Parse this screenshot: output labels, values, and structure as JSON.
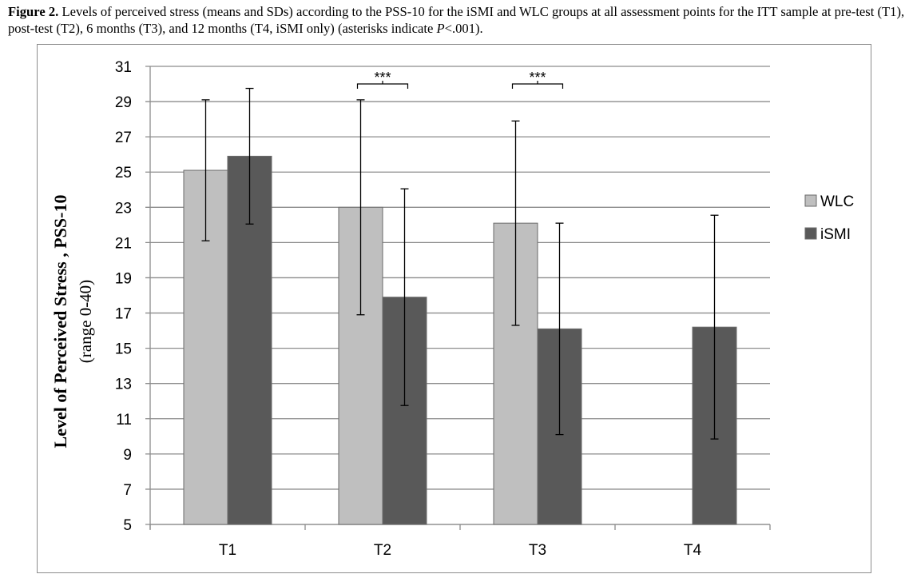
{
  "caption": {
    "label": "Figure 2.",
    "text_before_p": "Levels of perceived stress (means and SDs) according to the PSS-10 for the iSMI and WLC groups at all assessment points for the ITT sample at pre-test (T1), post-test (T2), 6 months (T3), and 12 months (T4, iSMI only) (asterisks indicate ",
    "p_symbol": "P",
    "text_after_p": "<.001)."
  },
  "chart_data": {
    "type": "bar",
    "categories": [
      "T1",
      "T2",
      "T3",
      "T4"
    ],
    "series": [
      {
        "name": "WLC",
        "color": "#bfbfbf",
        "values": [
          25.1,
          23.0,
          22.1,
          null
        ],
        "sd": [
          4.0,
          6.1,
          5.8,
          null
        ]
      },
      {
        "name": "iSMI",
        "color": "#595959",
        "values": [
          25.9,
          17.9,
          16.1,
          16.2
        ],
        "sd": [
          3.85,
          6.15,
          6.0,
          6.35
        ]
      }
    ],
    "ylabel": "Level of Perceived Stress , PSS-10",
    "ylabel_sub": "(range 0-40)",
    "ylim": [
      5,
      31
    ],
    "yticks": [
      "5",
      "7",
      "9",
      "11",
      "13",
      "15",
      "17",
      "19",
      "21",
      "23",
      "25",
      "27",
      "29",
      "31"
    ],
    "grid": true,
    "legend_position": "right",
    "significance": [
      {
        "category": "T2",
        "label": "***"
      },
      {
        "category": "T3",
        "label": "***"
      }
    ]
  }
}
